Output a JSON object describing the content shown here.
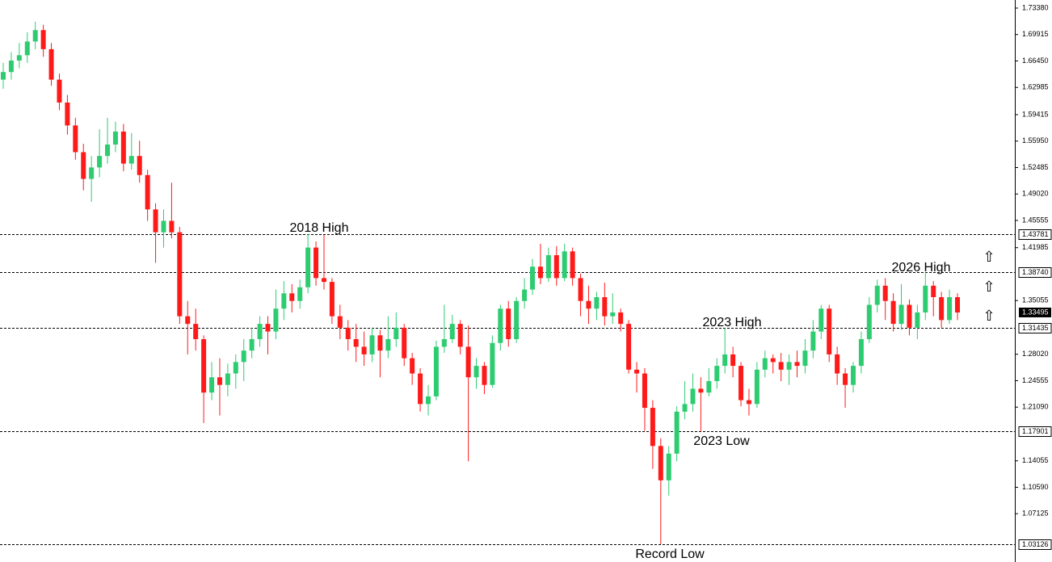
{
  "chart_data": {
    "type": "candlestick",
    "ylim": [
      1.03126,
      1.7338
    ],
    "yticks": [
      {
        "value": 1.7338,
        "label": "1.73380"
      },
      1.69915,
      {
        "value": 1.6645,
        "label": "1.66450"
      },
      1.62985,
      1.59415,
      {
        "value": 1.5595,
        "label": "1.55950"
      },
      1.52485,
      {
        "value": 1.4902,
        "label": "1.49020"
      },
      1.45555,
      1.41985,
      1.35055,
      {
        "value": 1.2802,
        "label": "1.28020"
      },
      1.24555,
      {
        "value": 1.2109,
        "label": "1.21090"
      },
      1.14055,
      {
        "value": 1.1059,
        "label": "1.10590"
      },
      1.07125
    ],
    "levels": [
      {
        "value": 1.43781,
        "label": "1.43781"
      },
      {
        "value": 1.3874,
        "label": "1.38740"
      },
      {
        "value": 1.31435,
        "label": "1.31435"
      },
      {
        "value": 1.17901,
        "label": "1.17901"
      },
      {
        "value": 1.03126,
        "label": "1.03126"
      }
    ],
    "current_price": {
      "value": 1.33495,
      "label": "1.33495"
    },
    "up_color": "#2ecc71",
    "down_color": "#ff1a1a",
    "annotations": [
      "2018 High",
      "2023 High",
      "2026 High",
      "2023 Low",
      "Record Low"
    ],
    "ohlc": [
      [
        1.64,
        1.662,
        1.628,
        1.65
      ],
      [
        1.65,
        1.676,
        1.64,
        1.665
      ],
      [
        1.665,
        1.688,
        1.655,
        1.672
      ],
      [
        1.672,
        1.702,
        1.662,
        1.69
      ],
      [
        1.69,
        1.716,
        1.68,
        1.705
      ],
      [
        1.705,
        1.712,
        1.67,
        1.68
      ],
      [
        1.68,
        1.688,
        1.632,
        1.64
      ],
      [
        1.64,
        1.648,
        1.6,
        1.61
      ],
      [
        1.61,
        1.62,
        1.568,
        1.58
      ],
      [
        1.58,
        1.59,
        1.535,
        1.545
      ],
      [
        1.545,
        1.556,
        1.495,
        1.51
      ],
      [
        1.51,
        1.54,
        1.48,
        1.525
      ],
      [
        1.525,
        1.575,
        1.512,
        1.54
      ],
      [
        1.54,
        1.59,
        1.53,
        1.555
      ],
      [
        1.555,
        1.585,
        1.545,
        1.572
      ],
      [
        1.572,
        1.582,
        1.52,
        1.53
      ],
      [
        1.53,
        1.57,
        1.522,
        1.54
      ],
      [
        1.54,
        1.56,
        1.505,
        1.515
      ],
      [
        1.515,
        1.522,
        1.455,
        1.47
      ],
      [
        1.47,
        1.478,
        1.4,
        1.44
      ],
      [
        1.44,
        1.47,
        1.42,
        1.455
      ],
      [
        1.455,
        1.505,
        1.432,
        1.44
      ],
      [
        1.44,
        1.447,
        1.32,
        1.33
      ],
      [
        1.33,
        1.35,
        1.28,
        1.32
      ],
      [
        1.32,
        1.34,
        1.285,
        1.3
      ],
      [
        1.3,
        1.305,
        1.19,
        1.23
      ],
      [
        1.23,
        1.27,
        1.22,
        1.25
      ],
      [
        1.25,
        1.275,
        1.2,
        1.24
      ],
      [
        1.24,
        1.268,
        1.225,
        1.255
      ],
      [
        1.255,
        1.28,
        1.235,
        1.27
      ],
      [
        1.27,
        1.3,
        1.245,
        1.285
      ],
      [
        1.285,
        1.315,
        1.275,
        1.3
      ],
      [
        1.3,
        1.33,
        1.29,
        1.32
      ],
      [
        1.32,
        1.33,
        1.28,
        1.31
      ],
      [
        1.31,
        1.365,
        1.3,
        1.34
      ],
      [
        1.34,
        1.376,
        1.325,
        1.36
      ],
      [
        1.36,
        1.372,
        1.335,
        1.35
      ],
      [
        1.35,
        1.378,
        1.34,
        1.368
      ],
      [
        1.368,
        1.43781,
        1.36,
        1.42
      ],
      [
        1.42,
        1.428,
        1.37,
        1.38
      ],
      [
        1.38,
        1.437,
        1.365,
        1.375
      ],
      [
        1.375,
        1.38,
        1.32,
        1.33
      ],
      [
        1.33,
        1.345,
        1.3,
        1.315
      ],
      [
        1.315,
        1.325,
        1.285,
        1.3
      ],
      [
        1.3,
        1.32,
        1.27,
        1.29
      ],
      [
        1.29,
        1.31,
        1.265,
        1.28
      ],
      [
        1.28,
        1.315,
        1.27,
        1.305
      ],
      [
        1.305,
        1.312,
        1.25,
        1.285
      ],
      [
        1.285,
        1.33,
        1.275,
        1.3
      ],
      [
        1.3,
        1.335,
        1.29,
        1.315
      ],
      [
        1.315,
        1.32,
        1.265,
        1.275
      ],
      [
        1.275,
        1.282,
        1.24,
        1.255
      ],
      [
        1.255,
        1.262,
        1.205,
        1.215
      ],
      [
        1.215,
        1.24,
        1.2,
        1.225
      ],
      [
        1.225,
        1.298,
        1.22,
        1.29
      ],
      [
        1.29,
        1.345,
        1.282,
        1.3
      ],
      [
        1.3,
        1.332,
        1.295,
        1.32
      ],
      [
        1.32,
        1.325,
        1.28,
        1.29
      ],
      [
        1.29,
        1.318,
        1.14,
        1.25
      ],
      [
        1.25,
        1.275,
        1.235,
        1.265
      ],
      [
        1.265,
        1.27,
        1.228,
        1.24
      ],
      [
        1.24,
        1.305,
        1.236,
        1.295
      ],
      [
        1.295,
        1.345,
        1.285,
        1.34
      ],
      [
        1.34,
        1.35,
        1.29,
        1.3
      ],
      [
        1.3,
        1.355,
        1.295,
        1.35
      ],
      [
        1.35,
        1.38,
        1.34,
        1.365
      ],
      [
        1.365,
        1.405,
        1.358,
        1.395
      ],
      [
        1.395,
        1.425,
        1.372,
        1.38
      ],
      [
        1.38,
        1.42,
        1.375,
        1.41
      ],
      [
        1.41,
        1.422,
        1.37,
        1.38
      ],
      [
        1.38,
        1.425,
        1.376,
        1.415
      ],
      [
        1.415,
        1.42,
        1.37,
        1.38
      ],
      [
        1.38,
        1.386,
        1.33,
        1.35
      ],
      [
        1.35,
        1.37,
        1.32,
        1.34
      ],
      [
        1.34,
        1.362,
        1.325,
        1.355
      ],
      [
        1.355,
        1.374,
        1.318,
        1.33
      ],
      [
        1.33,
        1.36,
        1.32,
        1.335
      ],
      [
        1.335,
        1.34,
        1.31,
        1.32
      ],
      [
        1.32,
        1.325,
        1.255,
        1.26
      ],
      [
        1.26,
        1.27,
        1.23,
        1.255
      ],
      [
        1.255,
        1.262,
        1.18,
        1.21
      ],
      [
        1.21,
        1.22,
        1.13,
        1.16
      ],
      [
        1.16,
        1.17,
        1.03126,
        1.115
      ],
      [
        1.115,
        1.16,
        1.095,
        1.15
      ],
      [
        1.15,
        1.212,
        1.14,
        1.205
      ],
      [
        1.205,
        1.245,
        1.195,
        1.215
      ],
      [
        1.215,
        1.255,
        1.205,
        1.235
      ],
      [
        1.235,
        1.25,
        1.17901,
        1.23
      ],
      [
        1.23,
        1.262,
        1.225,
        1.245
      ],
      [
        1.245,
        1.275,
        1.235,
        1.265
      ],
      [
        1.265,
        1.31435,
        1.255,
        1.28
      ],
      [
        1.28,
        1.29,
        1.25,
        1.265
      ],
      [
        1.265,
        1.27,
        1.212,
        1.22
      ],
      [
        1.22,
        1.235,
        1.2,
        1.215
      ],
      [
        1.215,
        1.27,
        1.21,
        1.26
      ],
      [
        1.26,
        1.285,
        1.25,
        1.275
      ],
      [
        1.275,
        1.28,
        1.255,
        1.27
      ],
      [
        1.27,
        1.282,
        1.245,
        1.26
      ],
      [
        1.26,
        1.28,
        1.24,
        1.27
      ],
      [
        1.27,
        1.285,
        1.25,
        1.265
      ],
      [
        1.265,
        1.3,
        1.255,
        1.285
      ],
      [
        1.285,
        1.325,
        1.275,
        1.31
      ],
      [
        1.31,
        1.345,
        1.3,
        1.34
      ],
      [
        1.34,
        1.345,
        1.27,
        1.28
      ],
      [
        1.28,
        1.29,
        1.24,
        1.255
      ],
      [
        1.255,
        1.262,
        1.21,
        1.24
      ],
      [
        1.24,
        1.27,
        1.23,
        1.265
      ],
      [
        1.265,
        1.31,
        1.255,
        1.3
      ],
      [
        1.3,
        1.355,
        1.295,
        1.345
      ],
      [
        1.345,
        1.378,
        1.335,
        1.37
      ],
      [
        1.37,
        1.38,
        1.325,
        1.35
      ],
      [
        1.35,
        1.36,
        1.31,
        1.32
      ],
      [
        1.32,
        1.372,
        1.312,
        1.345
      ],
      [
        1.345,
        1.352,
        1.305,
        1.315
      ],
      [
        1.315,
        1.345,
        1.3,
        1.335
      ],
      [
        1.335,
        1.3874,
        1.325,
        1.37
      ],
      [
        1.37,
        1.376,
        1.33,
        1.355
      ],
      [
        1.355,
        1.362,
        1.315,
        1.325
      ],
      [
        1.325,
        1.365,
        1.32,
        1.355
      ],
      [
        1.355,
        1.36,
        1.325,
        1.33495
      ]
    ]
  }
}
